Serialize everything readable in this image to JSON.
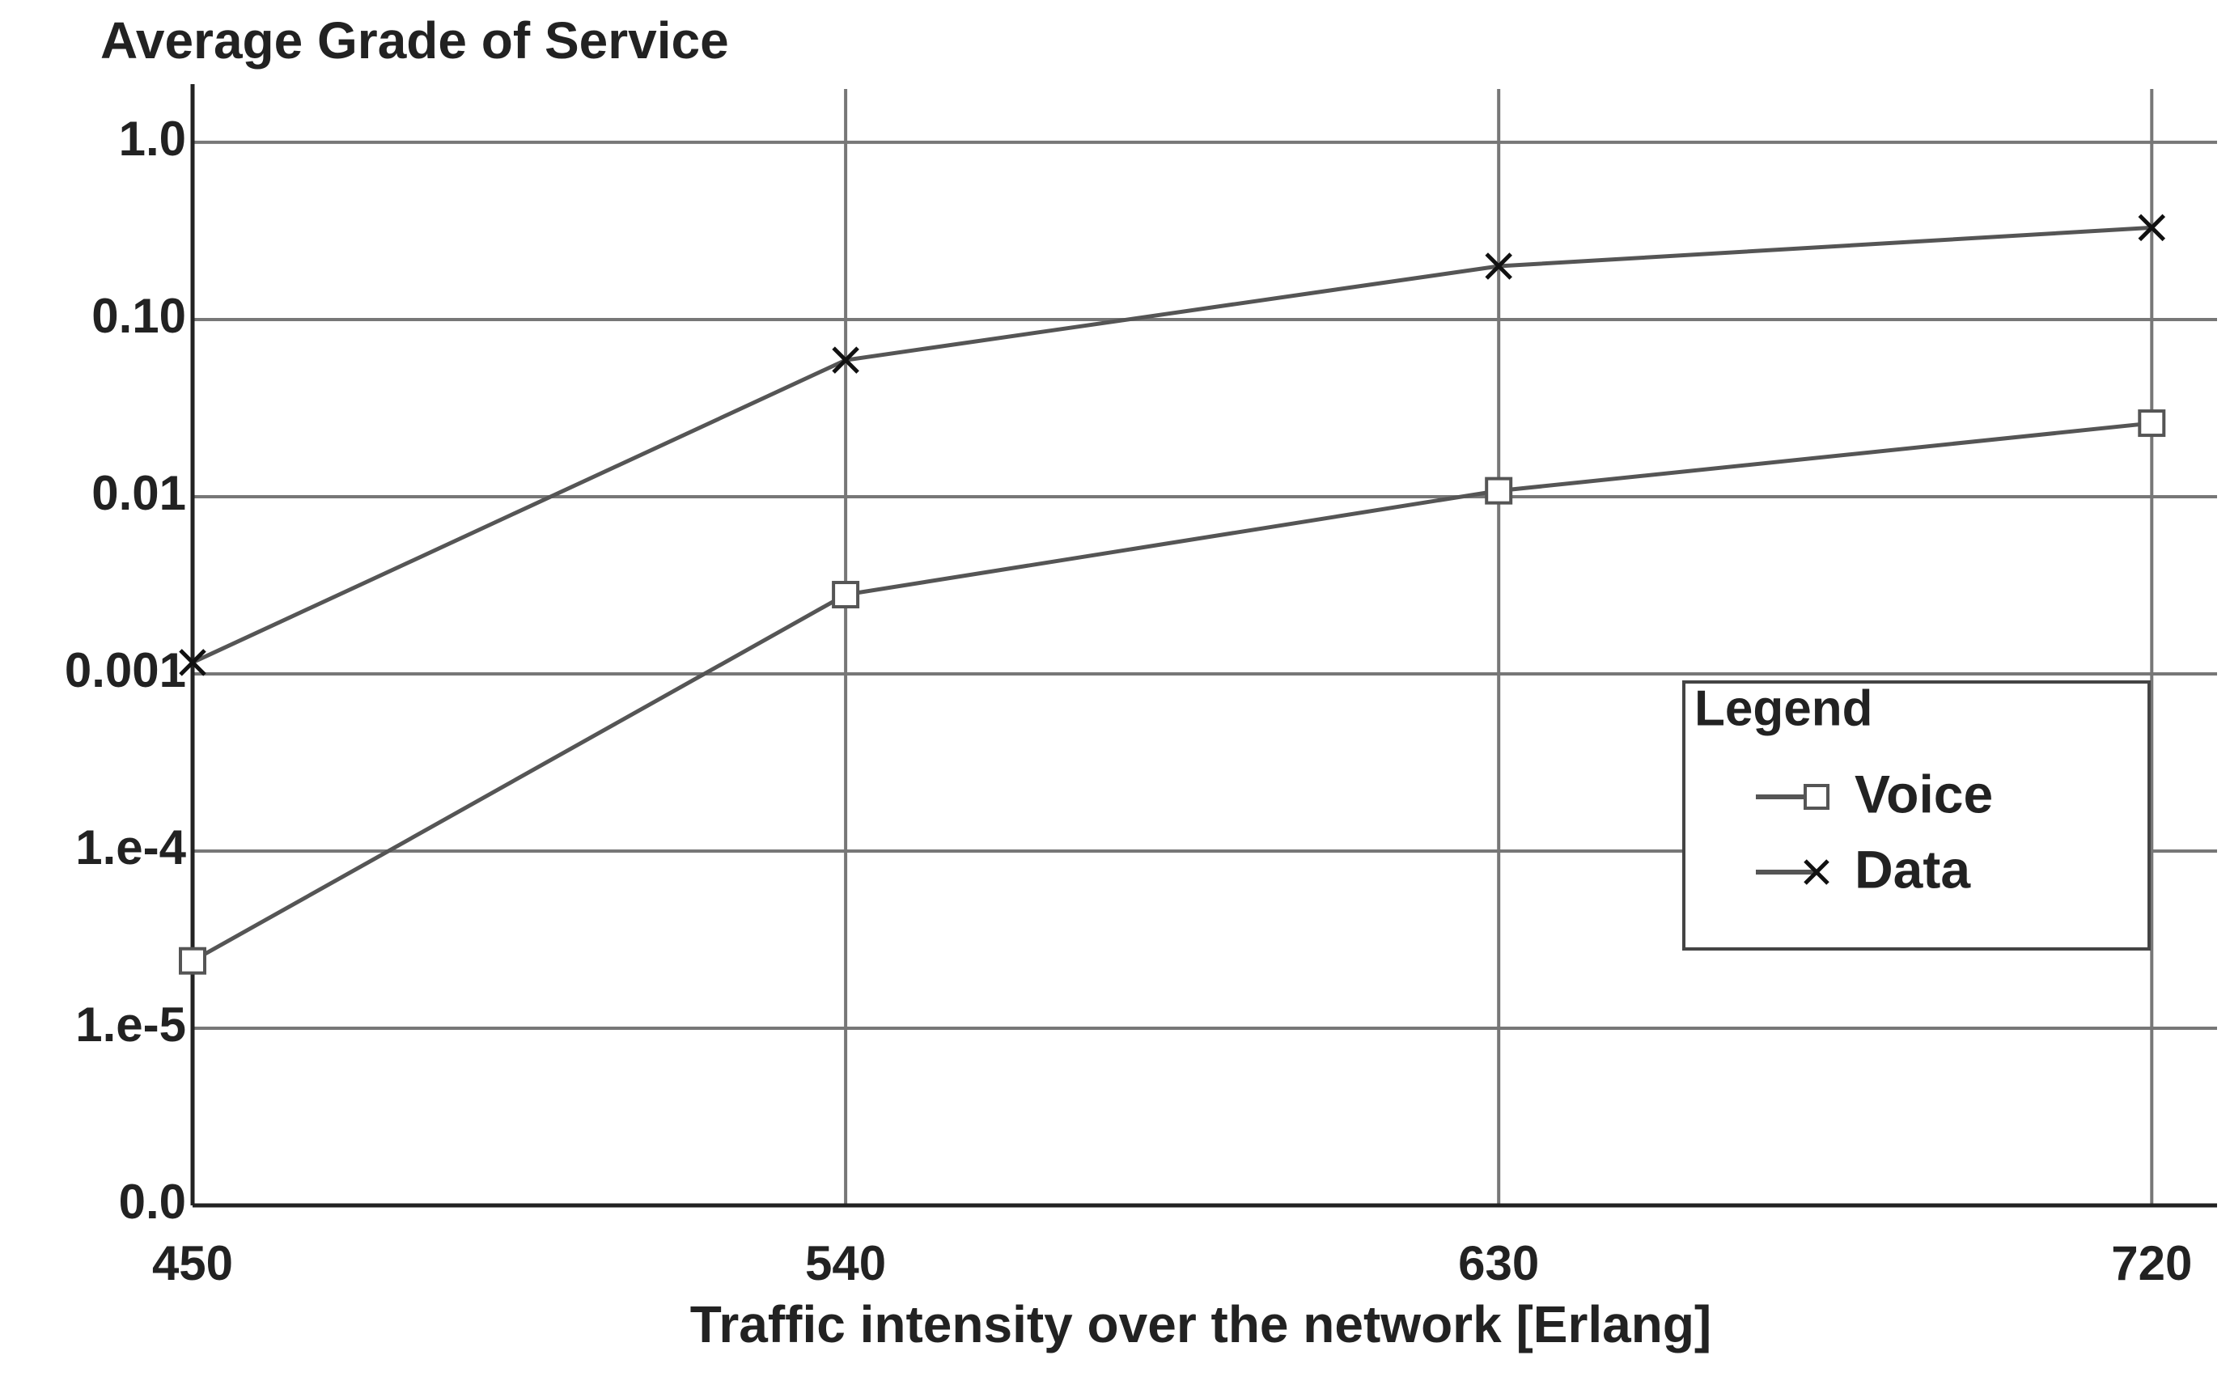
{
  "chart_data": {
    "type": "line",
    "title": "Average Grade of Service",
    "x_label": "Traffic intensity over the network [Erlang]",
    "x": [
      450,
      540,
      630,
      720
    ],
    "series": [
      {
        "name": "Voice",
        "color": "#555555",
        "marker": "square",
        "values": [
          2.4e-05,
          0.0028,
          0.0108,
          0.026
        ]
      },
      {
        "name": "Data",
        "color": "#555555",
        "marker": "x",
        "values": [
          0.00116,
          0.059,
          0.2,
          0.33
        ]
      }
    ],
    "xlim": [
      450,
      729
    ],
    "xticks": [
      450,
      540,
      630,
      720
    ],
    "ylim": [
      1e-06,
      2
    ],
    "yticks": [
      {
        "value": 1e-06,
        "label": "0.0"
      },
      {
        "value": 1e-05,
        "label": "1.e-5"
      },
      {
        "value": 0.0001,
        "label": "1.e-4"
      },
      0.001,
      0.01,
      {
        "value": 0.1,
        "label": "0.10"
      },
      {
        "value": 1,
        "label": "1.0"
      }
    ],
    "y_scale": "log",
    "grid": true,
    "legend_title": "Legend",
    "legend_position": "right"
  }
}
